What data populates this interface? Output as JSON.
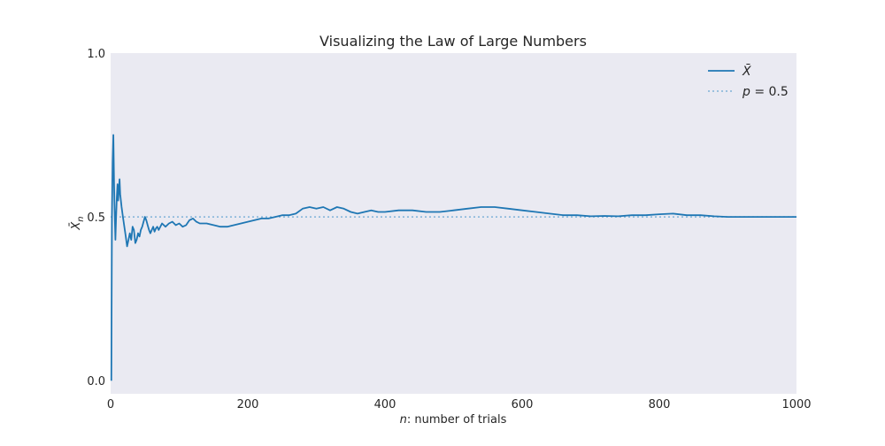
{
  "chart_data": {
    "type": "line",
    "title": "Visualizing the Law of Large Numbers",
    "xlabel_var": "n",
    "xlabel_rest": ": number of trials",
    "ylabel_main": "X̄",
    "ylabel_sub": "n",
    "xlim": [
      0,
      1000
    ],
    "ylim": [
      -0.04,
      1.0
    ],
    "xticks": [
      0,
      200,
      400,
      600,
      800,
      1000
    ],
    "xtick_labels": [
      "0",
      "200",
      "400",
      "600",
      "800",
      "1000"
    ],
    "yticks": [
      0.0,
      0.5,
      1.0
    ],
    "ytick_labels": [
      "0.0",
      "0.5",
      "1.0"
    ],
    "grid": false,
    "legend_position": "top-right",
    "legend": [
      {
        "label": "X̄",
        "style": "solid"
      },
      {
        "label_var": "p",
        "label_rest": " = 0.5",
        "style": "dotted"
      }
    ],
    "series": [
      {
        "name": "X̄",
        "color": "#1f77b4",
        "x": [
          1,
          2,
          3,
          4,
          5,
          6,
          7,
          8,
          9,
          10,
          11,
          12,
          13,
          14,
          15,
          16,
          18,
          20,
          22,
          24,
          26,
          28,
          30,
          32,
          34,
          36,
          38,
          40,
          42,
          44,
          46,
          48,
          50,
          52,
          54,
          56,
          58,
          60,
          62,
          64,
          66,
          68,
          70,
          75,
          80,
          85,
          90,
          95,
          100,
          105,
          110,
          115,
          120,
          125,
          130,
          140,
          150,
          160,
          170,
          180,
          190,
          200,
          210,
          220,
          230,
          240,
          250,
          260,
          270,
          280,
          290,
          300,
          310,
          320,
          330,
          340,
          350,
          360,
          370,
          380,
          390,
          400,
          420,
          440,
          460,
          480,
          500,
          520,
          540,
          560,
          580,
          600,
          620,
          640,
          660,
          680,
          700,
          720,
          740,
          760,
          780,
          800,
          820,
          840,
          860,
          880,
          900,
          920,
          940,
          960,
          980,
          1000
        ],
        "y": [
          0.0,
          0.5,
          0.667,
          0.75,
          0.6,
          0.5,
          0.43,
          0.5,
          0.56,
          0.6,
          0.55,
          0.58,
          0.615,
          0.57,
          0.55,
          0.53,
          0.5,
          0.47,
          0.44,
          0.41,
          0.43,
          0.45,
          0.43,
          0.47,
          0.46,
          0.42,
          0.43,
          0.45,
          0.44,
          0.46,
          0.47,
          0.485,
          0.5,
          0.49,
          0.475,
          0.46,
          0.45,
          0.46,
          0.47,
          0.455,
          0.465,
          0.47,
          0.46,
          0.48,
          0.47,
          0.48,
          0.485,
          0.475,
          0.48,
          0.47,
          0.475,
          0.49,
          0.495,
          0.485,
          0.48,
          0.48,
          0.475,
          0.47,
          0.47,
          0.475,
          0.48,
          0.485,
          0.49,
          0.495,
          0.495,
          0.5,
          0.505,
          0.505,
          0.51,
          0.525,
          0.53,
          0.525,
          0.53,
          0.52,
          0.53,
          0.525,
          0.515,
          0.51,
          0.515,
          0.52,
          0.515,
          0.515,
          0.52,
          0.52,
          0.515,
          0.515,
          0.52,
          0.525,
          0.53,
          0.53,
          0.525,
          0.52,
          0.515,
          0.51,
          0.505,
          0.505,
          0.502,
          0.503,
          0.502,
          0.505,
          0.505,
          0.508,
          0.51,
          0.505,
          0.505,
          0.502,
          0.5,
          0.5,
          0.5,
          0.5,
          0.5,
          0.5
        ]
      },
      {
        "name": "p = 0.5",
        "color": "#7fb2d8",
        "x": [
          0,
          1000
        ],
        "y": [
          0.5,
          0.5
        ]
      }
    ]
  }
}
